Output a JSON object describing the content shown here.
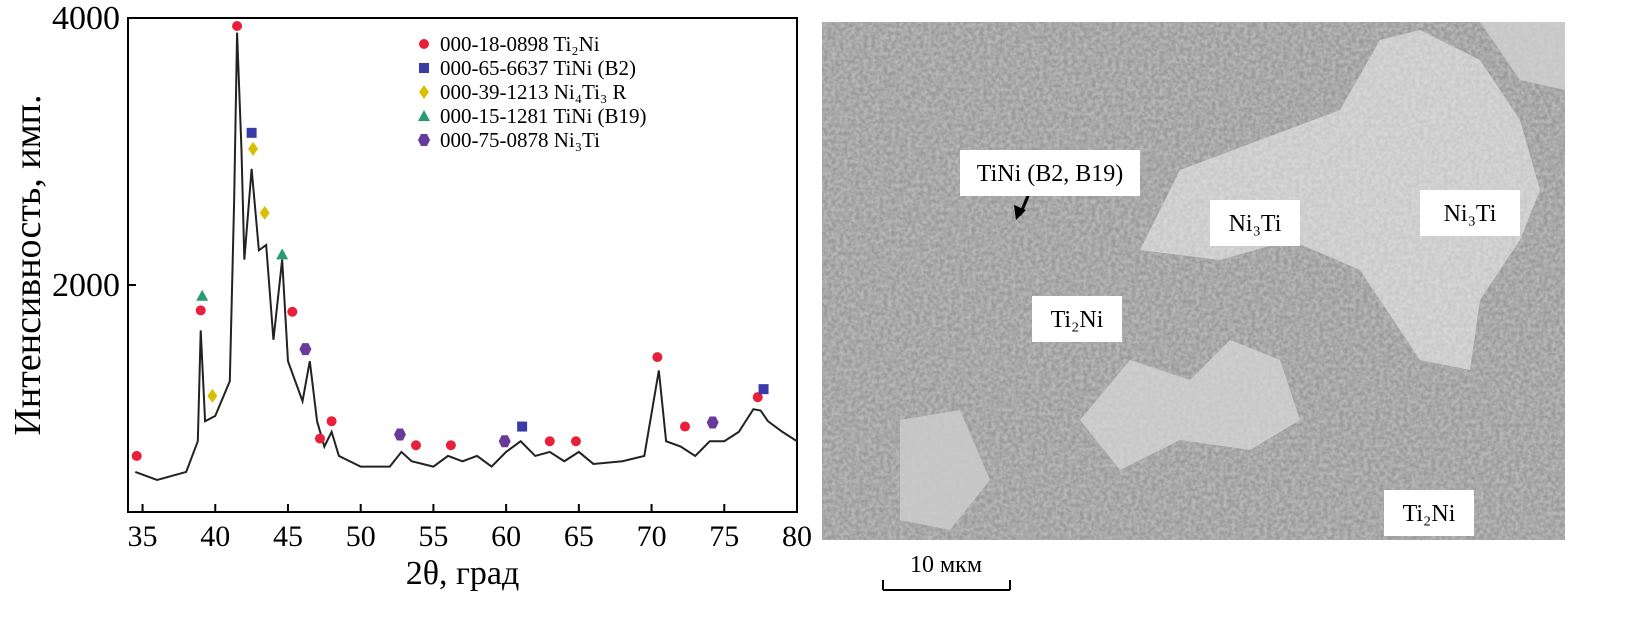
{
  "chart_data": {
    "type": "line",
    "x_label": "2θ, град",
    "y_label": "Интенсивность, имп.",
    "xlim": [
      34,
      80
    ],
    "xticks": [
      35,
      40,
      45,
      50,
      55,
      60,
      65,
      70,
      75,
      80
    ],
    "ylim": [
      300,
      4000
    ],
    "yticks": [
      2000,
      4000
    ],
    "color": "#222222",
    "x": [
      34.5,
      36,
      38,
      38.8,
      39,
      39.3,
      40,
      41,
      41.3,
      41.5,
      41.8,
      42,
      42.5,
      43,
      43.5,
      44,
      44.6,
      45,
      45.5,
      46,
      46.5,
      47,
      47.5,
      48,
      48.5,
      50,
      52,
      52.8,
      53.5,
      55,
      56,
      57,
      58,
      59,
      60,
      61,
      62,
      63,
      64,
      65,
      66,
      68,
      69.5,
      70.5,
      71,
      72,
      73,
      74,
      75,
      76,
      77,
      77.5,
      78,
      79,
      80
    ],
    "values": [
      600,
      540,
      600,
      830,
      1660,
      980,
      1020,
      1280,
      2640,
      3890,
      3020,
      2190,
      2870,
      2260,
      2300,
      1590,
      2190,
      1430,
      1280,
      1130,
      1430,
      980,
      790,
      900,
      720,
      640,
      640,
      750,
      680,
      640,
      720,
      680,
      720,
      640,
      750,
      830,
      720,
      750,
      680,
      750,
      660,
      680,
      720,
      1360,
      830,
      790,
      720,
      830,
      830,
      900,
      1070,
      1060,
      980,
      900,
      830
    ],
    "phases": [
      {
        "name": "000-18-0898 Ti₂Ni",
        "color": "#e8203a",
        "x": [
          34.6,
          39,
          41.5,
          45.3,
          47.2,
          48,
          53.8,
          56.2,
          63,
          64.8,
          70.4,
          72.3,
          77.3
        ],
        "values": [
          720,
          1810,
          3940,
          1800,
          850,
          980,
          800,
          800,
          830,
          830,
          1460,
          940,
          1160
        ]
      },
      {
        "name": "000-65-6637 TiNi (B2)",
        "color": "#3a3aa8",
        "x": [
          42.5,
          61.1,
          77.7
        ],
        "values": [
          3140,
          940,
          1220
        ]
      },
      {
        "name": "000-39-1213 Ni₄Ti₃ R",
        "color": "#d8c000",
        "x": [
          39.8,
          42.6,
          43.4
        ],
        "values": [
          1170,
          3020,
          2540
        ]
      },
      {
        "name": "000-15-1281 TiNi (B19)",
        "color": "#2a9a70",
        "x": [
          39.1,
          44.6
        ],
        "values": [
          1920,
          2230
        ]
      },
      {
        "name": "000-75-0878 Ni₃Ti",
        "color": "#6a3a9a",
        "x": [
          46.2,
          52.7,
          59.9,
          74.2
        ],
        "values": [
          1520,
          880,
          830,
          970
        ]
      }
    ]
  },
  "image": {
    "labels": [
      "TiNi (B2, B19)",
      "Ni₃Ti",
      "Ni₃Ti",
      "Ti₂Ni",
      "Ti₂Ni"
    ],
    "scale_bar": "10 мкм"
  }
}
